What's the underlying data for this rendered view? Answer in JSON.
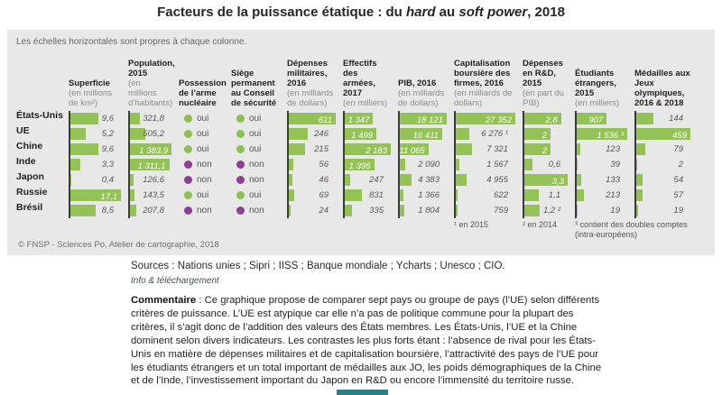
{
  "title": {
    "part1": "Facteurs de la puissance étatique : du ",
    "italic1": "hard",
    "part2": " au ",
    "italic2": "soft power",
    "part3": ", 2018"
  },
  "panel": {
    "note": "Les échelles horizontales sont propres à chaque colonne.",
    "copyright": "© FNSP - Sciences Po, Atelier de cartographie, 2018"
  },
  "chart_data": {
    "type": "table",
    "title": "Facteurs de la puissance étatique : du hard au soft power, 2018",
    "rows": [
      "États-Unis",
      "UE",
      "Chine",
      "Inde",
      "Japon",
      "Russie",
      "Brésil"
    ],
    "colors": {
      "bar": "#94c355",
      "oui": "#8cc152",
      "non": "#8d3f94"
    },
    "columns": [
      {
        "id": "superficie",
        "header": "Superficie",
        "unit": "(en millions de km²)",
        "kind": "bar",
        "max": 17.1,
        "values": [
          9.6,
          5.2,
          9.6,
          3.3,
          0.4,
          17.1,
          8.5
        ],
        "labels": [
          "9,6",
          "5,2",
          "9,6",
          "3,3",
          "0,4",
          "17,1",
          "8,5"
        ],
        "white": [
          5
        ]
      },
      {
        "id": "population",
        "header": "Population, 2015",
        "unit": "(en millions d’habitants)",
        "kind": "bar",
        "max": 1383.9,
        "values": [
          321.8,
          505.2,
          1383.9,
          1311.1,
          126.6,
          143.5,
          207.8
        ],
        "labels": [
          "321,8",
          "505,2",
          "1 383,9",
          "1 311,1",
          "126,6",
          "143,5",
          "207,8"
        ],
        "white": [
          2,
          3
        ]
      },
      {
        "id": "nucleaire",
        "header": "Possession de l’arme nucléaire",
        "unit": "",
        "kind": "dot",
        "values": [
          "oui",
          "oui",
          "oui",
          "non",
          "non",
          "oui",
          "non"
        ]
      },
      {
        "id": "siege",
        "header": "Siège permanent au Conseil de sécurité",
        "unit": "",
        "kind": "dot",
        "values": [
          "oui",
          "oui",
          "oui",
          "non",
          "non",
          "oui",
          "non"
        ]
      },
      {
        "id": "dep_mil",
        "header": "Dépenses militaires, 2016",
        "unit": "(en milliards de dollars)",
        "kind": "bar",
        "max": 611,
        "values": [
          611,
          246,
          215,
          56,
          46,
          69,
          24
        ],
        "labels": [
          "611",
          "246",
          "215",
          "56",
          "46",
          "69",
          "24"
        ],
        "white": [
          0
        ]
      },
      {
        "id": "effectifs",
        "header": "Effectifs des armées, 2017",
        "unit": "(en milliers)",
        "kind": "bar",
        "max": 2183,
        "values": [
          1347,
          1499,
          2183,
          1395,
          247,
          831,
          335
        ],
        "labels": [
          "1 347",
          "1 499",
          "2 183",
          "1 395",
          "247",
          "831",
          "335"
        ],
        "white": [
          0,
          1,
          2,
          3
        ]
      },
      {
        "id": "pib",
        "header": "PIB, 2016",
        "unit": "(en milliards de dollars)",
        "kind": "bar",
        "max": 18121,
        "values": [
          18121,
          16411,
          11065,
          2090,
          4383,
          1366,
          1804
        ],
        "labels": [
          "18 121",
          "16 411",
          "11 065",
          "2 090",
          "4 383",
          "1 366",
          "1 804"
        ],
        "white": [
          0,
          1,
          2
        ]
      },
      {
        "id": "capitalisation",
        "header": "Capitalisation boursière des firmes, 2016",
        "unit": "(en milliards de dollars)",
        "kind": "bar",
        "max": 27352,
        "values": [
          27352,
          6276,
          7321,
          1567,
          4955,
          622,
          759
        ],
        "labels": [
          "27 352",
          "6 276 ¹",
          "7 321",
          "1 567",
          "4 955",
          "622",
          "759"
        ],
        "white": [
          0
        ],
        "footnote": "¹ en 2015"
      },
      {
        "id": "rd",
        "header": "Dépenses en R&D, 2015",
        "unit": "(en part du PIB)",
        "kind": "bar",
        "max": 3.3,
        "values": [
          2.8,
          2,
          2,
          0.6,
          3.3,
          1.1,
          1.2
        ],
        "labels": [
          "2,8",
          "2",
          "2",
          "0,6",
          "3,3",
          "1,1",
          "1,2 ²"
        ],
        "white": [
          0,
          1,
          2,
          4
        ],
        "footnote": "² en 2014"
      },
      {
        "id": "etudiants",
        "header": "Étudiants étrangers, 2015",
        "unit": "(en milliers)",
        "kind": "bar",
        "max": 1536,
        "values": [
          907,
          1536,
          123,
          39,
          133,
          213,
          19
        ],
        "labels": [
          "907",
          "1 536 ³",
          "123",
          "39",
          "133",
          "213",
          "19"
        ],
        "white": [
          0,
          1
        ],
        "footnote": "³ contient des doubles comptes (intra-européens)"
      },
      {
        "id": "medailles",
        "header": "Médailles aux Jeux olympiques, 2016 & 2018",
        "unit": "",
        "kind": "bar",
        "max": 459,
        "values": [
          144,
          459,
          79,
          2,
          54,
          57,
          19
        ],
        "labels": [
          "144",
          "459",
          "79",
          "2",
          "54",
          "57",
          "19"
        ],
        "white": [
          1
        ]
      }
    ]
  },
  "below": {
    "sources": "Sources : Nations unies ; Sipri ; IISS ; Banque mondiale ; Ycharts ; Unesco ; CIO.",
    "link_label": "Info & téléchargement",
    "commentary_label": "Commentaire",
    "commentary_text": " : Ce graphique propose de comparer sept pays ou groupe de pays (l’UE) selon différents critères de puissance. L’UE est atypique car elle n’a pas de politique commune pour la plupart des critères, il s’agit donc de l’addition des valeurs des États membres. Les États-Unis, l’UE et la Chine dominent selon divers indicateurs. Les contrastes les plus forts étant : l’absence de rival pour les États-Unis en matière de dépenses militaires et de capitalisation boursière, l’attractivité des pays de l’UE pour les étudiants étrangers et un total important de médailles aux JO, les poids démographiques de la Chine et de l’Inde, l’investissement important du Japon en R&D ou encore l’immensité du territoire russe."
  }
}
